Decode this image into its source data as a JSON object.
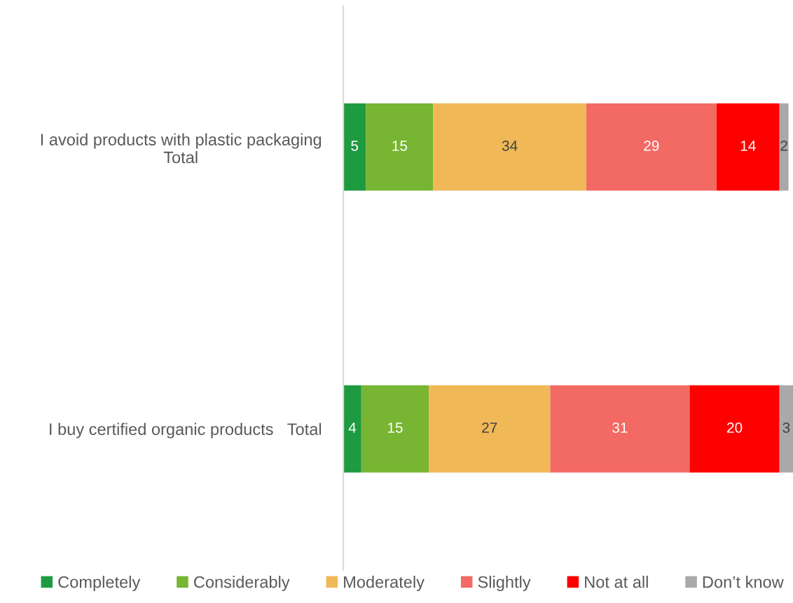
{
  "chart_data": {
    "type": "bar",
    "orientation": "horizontal",
    "stacked": true,
    "data_labels": true,
    "legend": "bottom",
    "tick_labels": "y",
    "categories": [
      "I avoid products with plastic packaging\nTotal",
      "I buy certified organic products   Total"
    ],
    "series": [
      {
        "name": "Completely",
        "color": "#1e9a40",
        "values": [
          5,
          4
        ]
      },
      {
        "name": "Considerably",
        "color": "#77b532",
        "values": [
          15,
          15
        ]
      },
      {
        "name": "Moderately",
        "color": "#f0b857",
        "values": [
          34,
          27
        ]
      },
      {
        "name": "Slightly",
        "color": "#f26a63",
        "values": [
          29,
          31
        ]
      },
      {
        "name": "Not at all",
        "color": "#ff0000",
        "values": [
          14,
          20
        ]
      },
      {
        "name": "Don’t know",
        "color": "#a9a9a9",
        "values": [
          2,
          3
        ]
      }
    ]
  }
}
